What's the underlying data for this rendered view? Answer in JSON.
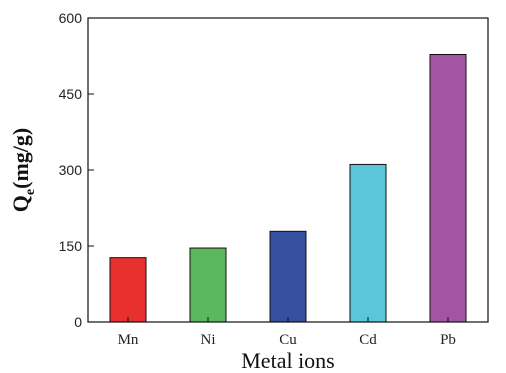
{
  "chart_data": {
    "type": "bar",
    "categories": [
      "Mn",
      "Ni",
      "Cu",
      "Cd",
      "Pb"
    ],
    "values": [
      127,
      146,
      179,
      311,
      528
    ],
    "colors": [
      "#e8302e",
      "#5cb85c",
      "#34509e",
      "#5bc5da",
      "#a355a3"
    ],
    "xlabel": "Metal ions",
    "ylabel": {
      "main": "Q",
      "subscript": "e",
      "unit": "(mg/g)"
    },
    "ylim": [
      0,
      600
    ],
    "yticks": [
      0,
      150,
      300,
      450,
      600
    ],
    "grid": false,
    "legend": "none"
  }
}
